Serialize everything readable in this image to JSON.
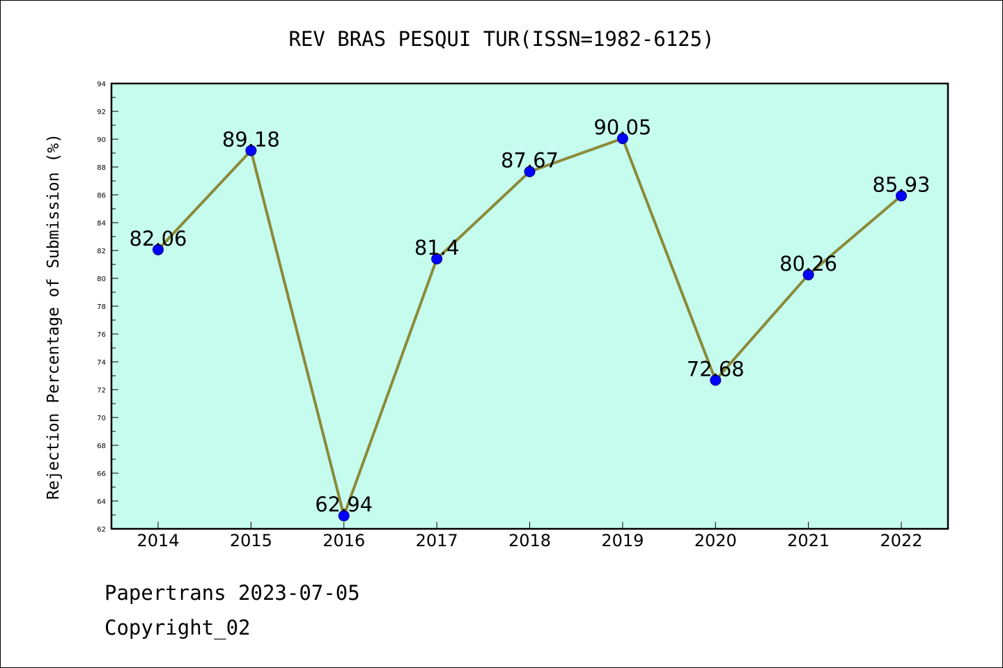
{
  "chart_data": {
    "type": "line",
    "title": "REV BRAS PESQUI TUR(ISSN=1982-6125)",
    "xlabel": "",
    "ylabel": "Rejection Percentage of Submission (%)",
    "categories": [
      "2014",
      "2015",
      "2016",
      "2017",
      "2018",
      "2019",
      "2020",
      "2021",
      "2022"
    ],
    "series": [
      {
        "values": [
          82.06,
          89.18,
          62.94,
          81.4,
          87.67,
          90.05,
          72.68,
          80.26,
          85.93
        ],
        "data_labels": [
          "82.06",
          "89.18",
          "62.94",
          "81.4",
          "87.67",
          "90.05",
          "72.68",
          "80.26",
          "85.93"
        ],
        "line_color": "#8b8a3a",
        "marker_color": "#0000ff"
      }
    ],
    "ylim": [
      62,
      94
    ],
    "yticks": [
      "62",
      "64",
      "66",
      "68",
      "70",
      "72",
      "74",
      "76",
      "78",
      "80",
      "82",
      "84",
      "86",
      "88",
      "90",
      "92",
      "94"
    ],
    "plot_background": "#c6fcee",
    "grid": false,
    "legend": "none"
  },
  "footer": {
    "line1": "Papertrans 2023-07-05",
    "line2": "Copyright_02"
  }
}
